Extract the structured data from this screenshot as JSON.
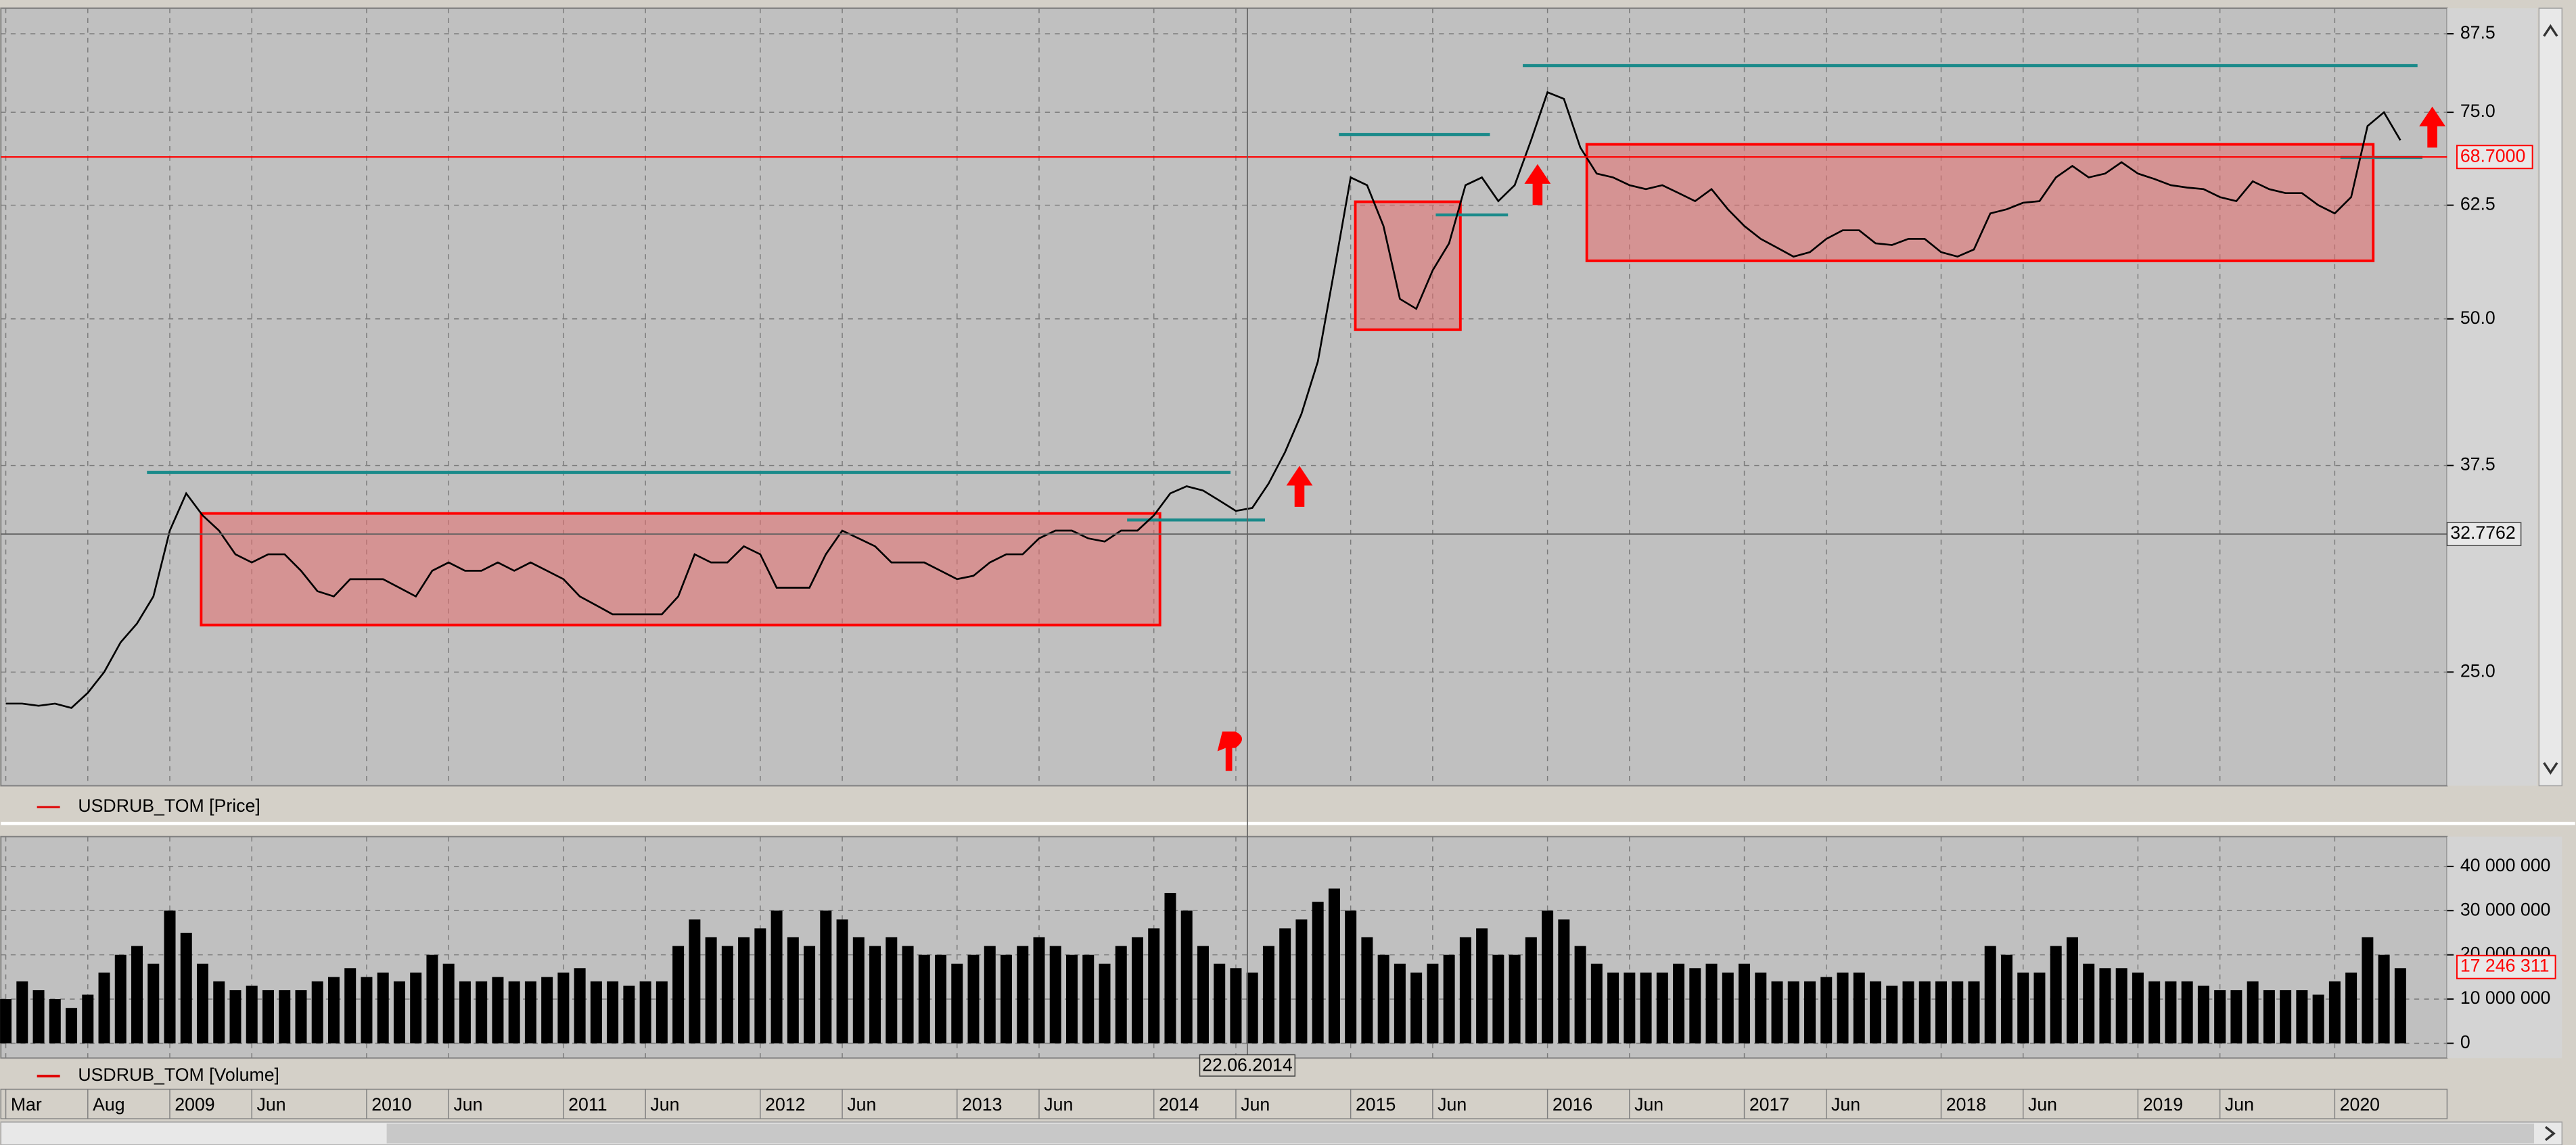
{
  "chart_data": [
    {
      "type": "line",
      "legend": "USDRUB_TOM [Price]",
      "legend_color": "#e00000",
      "color": "#000000",
      "log_scale": true,
      "grid": true,
      "ylim": [
        20,
        92
      ],
      "yticks": [
        {
          "value": 25,
          "label": "25.0"
        },
        {
          "value": 37.5,
          "label": "37.5"
        },
        {
          "value": 50,
          "label": "50.0"
        },
        {
          "value": 62.5,
          "label": "62.5"
        },
        {
          "value": 75,
          "label": "75.0"
        },
        {
          "value": 87.5,
          "label": "87.5"
        }
      ],
      "values": [
        23.5,
        23.5,
        23.4,
        23.5,
        23.3,
        24,
        25,
        26.5,
        27.5,
        29,
        33,
        35.5,
        34,
        33,
        31.5,
        31,
        31.5,
        31.5,
        30.5,
        29.3,
        29,
        30,
        30,
        30,
        29.5,
        29,
        30.5,
        31,
        30.5,
        30.5,
        31,
        30.5,
        31,
        30.5,
        30,
        29,
        28.5,
        28,
        28,
        28,
        28,
        29,
        31.5,
        31,
        31,
        32,
        31.5,
        29.5,
        29.5,
        29.5,
        31.5,
        33,
        32.5,
        32,
        31,
        31,
        31,
        30.5,
        30,
        30.2,
        31,
        31.5,
        31.5,
        32.5,
        33,
        33,
        32.5,
        32.3,
        33,
        33,
        34,
        35.5,
        36,
        35.7,
        35,
        34.3,
        34.5,
        36.2,
        38.5,
        41.5,
        46,
        55,
        66,
        65,
        60,
        52,
        51,
        55,
        58,
        65,
        66,
        63,
        65,
        71,
        78,
        77,
        70,
        66.5,
        66,
        65,
        64.5,
        65,
        64,
        63,
        64.5,
        62,
        60,
        58.5,
        57.5,
        56.5,
        57,
        58.5,
        59.5,
        59.5,
        58,
        57.8,
        58.5,
        58.5,
        57,
        56.5,
        57.3,
        61.5,
        62,
        62.8,
        63,
        66,
        67.5,
        66,
        66.5,
        68,
        66.5,
        65.8,
        65,
        64.7,
        64.5,
        63.5,
        63,
        65.5,
        64.5,
        64,
        64,
        62.5,
        61.5,
        63.5,
        73,
        75,
        71
      ],
      "last_value": {
        "value": 68.7,
        "label": "68.7000"
      },
      "cursor_value": 32.7762,
      "cursor_date": "22.06.2014"
    },
    {
      "type": "bar",
      "legend": "USDRUB_TOM [Volume]",
      "legend_color": "#e00000",
      "color": "#000000",
      "grid": true,
      "ylim": [
        0,
        46000000
      ],
      "yticks": [
        0,
        {
          "value": 10000000,
          "label": "10 000 000"
        },
        {
          "value": 20000000,
          "label": "20 000 000"
        },
        {
          "value": 30000000,
          "label": "30 000 000"
        },
        {
          "value": 40000000,
          "label": "40 000 000"
        }
      ],
      "categories": [
        "Mar",
        null,
        null,
        null,
        null,
        "Aug",
        null,
        null,
        null,
        null,
        "2009",
        null,
        null,
        null,
        null,
        "Jun",
        null,
        null,
        null,
        null,
        null,
        null,
        "2010",
        null,
        null,
        null,
        null,
        "Jun",
        null,
        null,
        null,
        null,
        null,
        null,
        "2011",
        null,
        null,
        null,
        null,
        "Jun",
        null,
        null,
        null,
        null,
        null,
        null,
        "2012",
        null,
        null,
        null,
        null,
        "Jun",
        null,
        null,
        null,
        null,
        null,
        null,
        "2013",
        null,
        null,
        null,
        null,
        "Jun",
        null,
        null,
        null,
        null,
        null,
        null,
        "2014",
        null,
        null,
        null,
        null,
        "Jun",
        null,
        null,
        null,
        null,
        null,
        null,
        "2015",
        null,
        null,
        null,
        null,
        "Jun",
        null,
        null,
        null,
        null,
        null,
        null,
        "2016",
        null,
        null,
        null,
        null,
        "Jun",
        null,
        null,
        null,
        null,
        null,
        null,
        "2017",
        null,
        null,
        null,
        null,
        "Jun",
        null,
        null,
        null,
        null,
        null,
        null,
        "2018",
        null,
        null,
        null,
        null,
        "Jun",
        null,
        null,
        null,
        null,
        null,
        null,
        "2019",
        null,
        null,
        null,
        null,
        "Jun",
        null,
        null,
        null,
        null,
        null,
        null,
        "2020",
        null,
        null,
        null,
        null
      ],
      "values": [
        10000000,
        14000000,
        12000000,
        10000000,
        8000000,
        11000000,
        16000000,
        20000000,
        22000000,
        18000000,
        30000000,
        25000000,
        18000000,
        14000000,
        12000000,
        13000000,
        12000000,
        12000000,
        12000000,
        14000000,
        15000000,
        17000000,
        15000000,
        16000000,
        14000000,
        16000000,
        20000000,
        18000000,
        14000000,
        14000000,
        15000000,
        14000000,
        14000000,
        15000000,
        16000000,
        17000000,
        14000000,
        14000000,
        13000000,
        14000000,
        14000000,
        22000000,
        28000000,
        24000000,
        22000000,
        24000000,
        26000000,
        30000000,
        24000000,
        22000000,
        30000000,
        28000000,
        24000000,
        22000000,
        24000000,
        22000000,
        20000000,
        20000000,
        18000000,
        20000000,
        22000000,
        20000000,
        22000000,
        24000000,
        22000000,
        20000000,
        20000000,
        18000000,
        22000000,
        24000000,
        26000000,
        34000000,
        30000000,
        22000000,
        18000000,
        17000000,
        16000000,
        22000000,
        26000000,
        28000000,
        32000000,
        35000000,
        30000000,
        24000000,
        20000000,
        18000000,
        16000000,
        18000000,
        20000000,
        24000000,
        26000000,
        20000000,
        20000000,
        24000000,
        30000000,
        28000000,
        22000000,
        18000000,
        16000000,
        16000000,
        16000000,
        16000000,
        18000000,
        17000000,
        18000000,
        16000000,
        18000000,
        16000000,
        14000000,
        14000000,
        14000000,
        15000000,
        16000000,
        16000000,
        14000000,
        13000000,
        14000000,
        14000000,
        14000000,
        14000000,
        14000000,
        22000000,
        20000000,
        16000000,
        16000000,
        22000000,
        24000000,
        18000000,
        17000000,
        17000000,
        16000000,
        14000000,
        14000000,
        14000000,
        13000000,
        12000000,
        12000000,
        14000000,
        12000000,
        12000000,
        12000000,
        11000000,
        14000000,
        16000000,
        24000000,
        20000000,
        17000000
      ],
      "last_value": {
        "value": 17246311,
        "label": "17 246 311"
      }
    }
  ]
}
